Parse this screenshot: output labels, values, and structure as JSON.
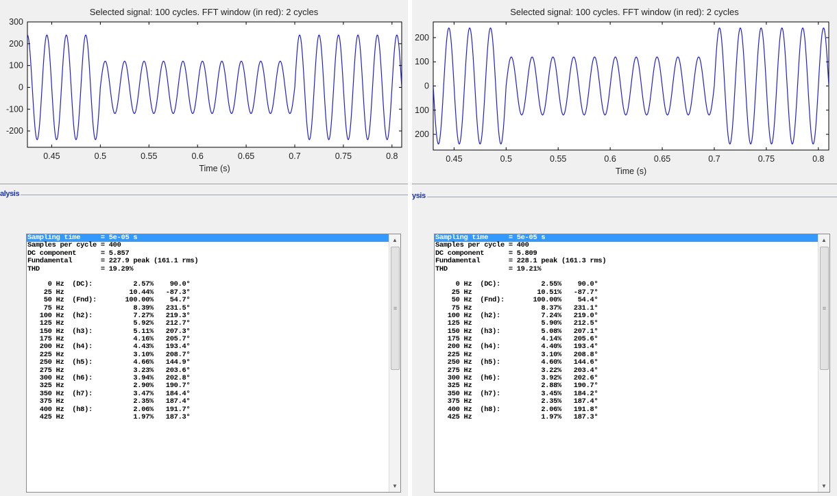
{
  "panels": [
    {
      "plot": {
        "title": "Selected signal: 100 cycles. FFT window (in red): 2 cycles",
        "xlabel": "Time (s)",
        "yticks": [
          "300",
          "200",
          "100",
          "0",
          "-100",
          "-200"
        ],
        "xticks": [
          "0.45",
          "0.5",
          "0.55",
          "0.6",
          "0.65",
          "0.7",
          "0.75",
          "0.8"
        ]
      },
      "group_label": "alysis",
      "results": [
        "Sampling time     = 5e-05 s",
        "Samples per cycle = 400",
        "DC component      = 5.857",
        "Fundamental       = 227.9 peak (161.1 rms)",
        "THD               = 19.29%",
        "",
        "     0 Hz  (DC):          2.57%    90.0°",
        "    25 Hz                10.44%   -87.3°",
        "    50 Hz  (Fnd):       100.00%    54.7°",
        "    75 Hz                 8.39%   231.5°",
        "   100 Hz  (h2):          7.27%   219.3°",
        "   125 Hz                 5.92%   212.7°",
        "   150 Hz  (h3):          5.11%   207.3°",
        "   175 Hz                 4.16%   205.7°",
        "   200 Hz  (h4):          4.43%   193.4°",
        "   225 Hz                 3.10%   208.7°",
        "   250 Hz  (h5):          4.66%   144.9°",
        "   275 Hz                 3.23%   203.6°",
        "   300 Hz  (h6):          3.94%   202.8°",
        "   325 Hz                 2.90%   190.7°",
        "   350 Hz  (h7):          3.47%   184.4°",
        "   375 Hz                 2.35%   187.4°",
        "   400 Hz  (h8):          2.06%   191.7°",
        "   425 Hz                 1.97%   187.3°"
      ]
    },
    {
      "plot": {
        "title": "Selected signal: 100 cycles. FFT window (in red): 2 cycles",
        "xlabel": "Time (s)",
        "yticks": [
          "200",
          "100",
          "0",
          "100",
          "200"
        ],
        "xticks": [
          "0.45",
          "0.5",
          "0.55",
          "0.6",
          "0.65",
          "0.7",
          "0.75",
          "0.8"
        ]
      },
      "group_label": "ysis",
      "results": [
        "Sampling time     = 5e-05 s",
        "Samples per cycle = 400",
        "DC component      = 5.809",
        "Fundamental       = 228.1 peak (161.3 rms)",
        "THD               = 19.21%",
        "",
        "     0 Hz  (DC):          2.55%    90.0°",
        "    25 Hz                10.51%   -87.7°",
        "    50 Hz  (Fnd):       100.00%    54.4°",
        "    75 Hz                 8.37%   231.1°",
        "   100 Hz  (h2):          7.24%   219.0°",
        "   125 Hz                 5.90%   212.5°",
        "   150 Hz  (h3):          5.08%   207.1°",
        "   175 Hz                 4.14%   205.6°",
        "   200 Hz  (h4):          4.40%   193.4°",
        "   225 Hz                 3.10%   208.8°",
        "   250 Hz  (h5):          4.60%   144.6°",
        "   275 Hz                 3.22%   203.4°",
        "   300 Hz  (h6):          3.92%   202.6°",
        "   325 Hz                 2.88%   190.7°",
        "   350 Hz  (h7):          3.45%   184.2°",
        "   375 Hz                 2.35%   187.4°",
        "   400 Hz  (h8):          2.06%   191.8°",
        "   425 Hz                 1.97%   187.3°"
      ]
    }
  ],
  "chart_data": [
    {
      "type": "line",
      "title": "Selected signal: 100 cycles. FFT window (in red): 2 cycles",
      "xlabel": "Time (s)",
      "ylabel": "",
      "xlim": [
        0.425,
        0.81
      ],
      "ylim": [
        -275,
        300
      ],
      "signal": {
        "frequency_hz": 50,
        "segments": [
          {
            "t_start": 0.4,
            "t_end": 0.5,
            "amplitude": 240
          },
          {
            "t_start": 0.5,
            "t_end": 0.7,
            "amplitude": 120
          },
          {
            "t_start": 0.7,
            "t_end": 0.82,
            "amplitude": 240
          }
        ]
      },
      "line_color": "#1f1fd8",
      "grid": false
    },
    {
      "type": "line",
      "title": "Selected signal: 100 cycles. FFT window (in red): 2 cycles",
      "xlabel": "Time (s)",
      "ylabel": "",
      "xlim": [
        0.43,
        0.81
      ],
      "ylim": [
        -265,
        265
      ],
      "signal": {
        "frequency_hz": 50,
        "segments": [
          {
            "t_start": 0.4,
            "t_end": 0.5,
            "amplitude": 240
          },
          {
            "t_start": 0.5,
            "t_end": 0.7,
            "amplitude": 120
          },
          {
            "t_start": 0.7,
            "t_end": 0.82,
            "amplitude": 240
          }
        ]
      },
      "line_color": "#1f1fd8",
      "grid": false
    }
  ]
}
